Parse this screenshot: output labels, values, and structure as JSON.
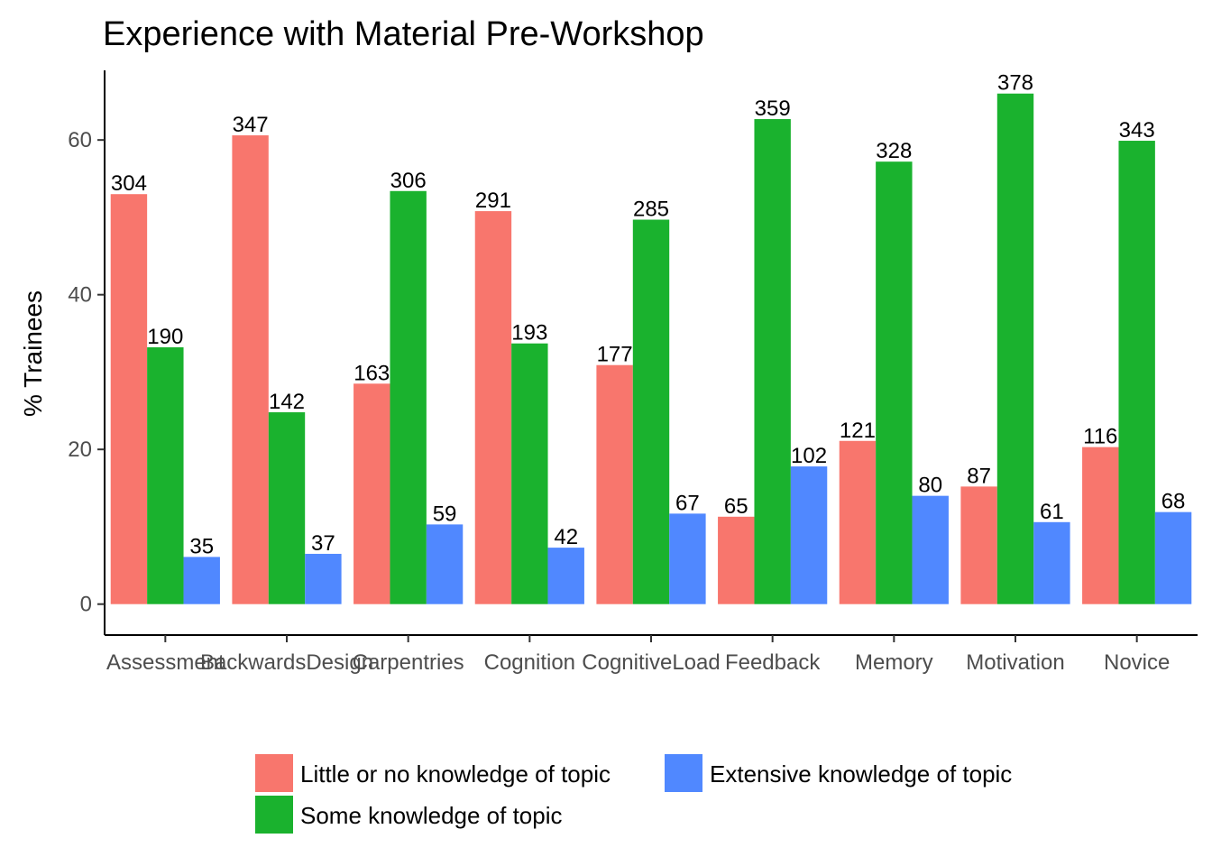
{
  "chart_data": {
    "type": "bar",
    "title": "Experience with Material Pre-Workshop",
    "xlabel": "",
    "ylabel": "% Trainees",
    "ylim": [
      -4,
      69
    ],
    "yticks": [
      0,
      20,
      40,
      60
    ],
    "grid": false,
    "legend_position": "bottom",
    "categories": [
      "Assessment",
      "BackwardsDesign",
      "Carpentries",
      "Cognition",
      "CognitiveLoad",
      "Feedback",
      "Memory",
      "Motivation",
      "Novice"
    ],
    "series": [
      {
        "name": "Little or no knowledge of topic",
        "color": "#F8766D",
        "values": [
          53.0,
          60.6,
          28.5,
          50.8,
          30.9,
          11.3,
          21.1,
          15.2,
          20.3
        ],
        "labels": [
          "304",
          "347",
          "163",
          "291",
          "177",
          "65",
          "121",
          "87",
          "116"
        ]
      },
      {
        "name": "Some knowledge of topic",
        "color": "#1AB22E",
        "values": [
          33.2,
          24.8,
          53.4,
          33.7,
          49.7,
          62.7,
          57.2,
          66.0,
          59.9
        ],
        "labels": [
          "190",
          "142",
          "306",
          "193",
          "285",
          "359",
          "328",
          "378",
          "343"
        ]
      },
      {
        "name": "Extensive knowledge of topic",
        "color": "#5088FF",
        "values": [
          6.1,
          6.5,
          10.3,
          7.3,
          11.7,
          17.8,
          14.0,
          10.6,
          11.9
        ],
        "labels": [
          "35",
          "37",
          "59",
          "42",
          "67",
          "102",
          "80",
          "61",
          "68"
        ]
      }
    ]
  }
}
